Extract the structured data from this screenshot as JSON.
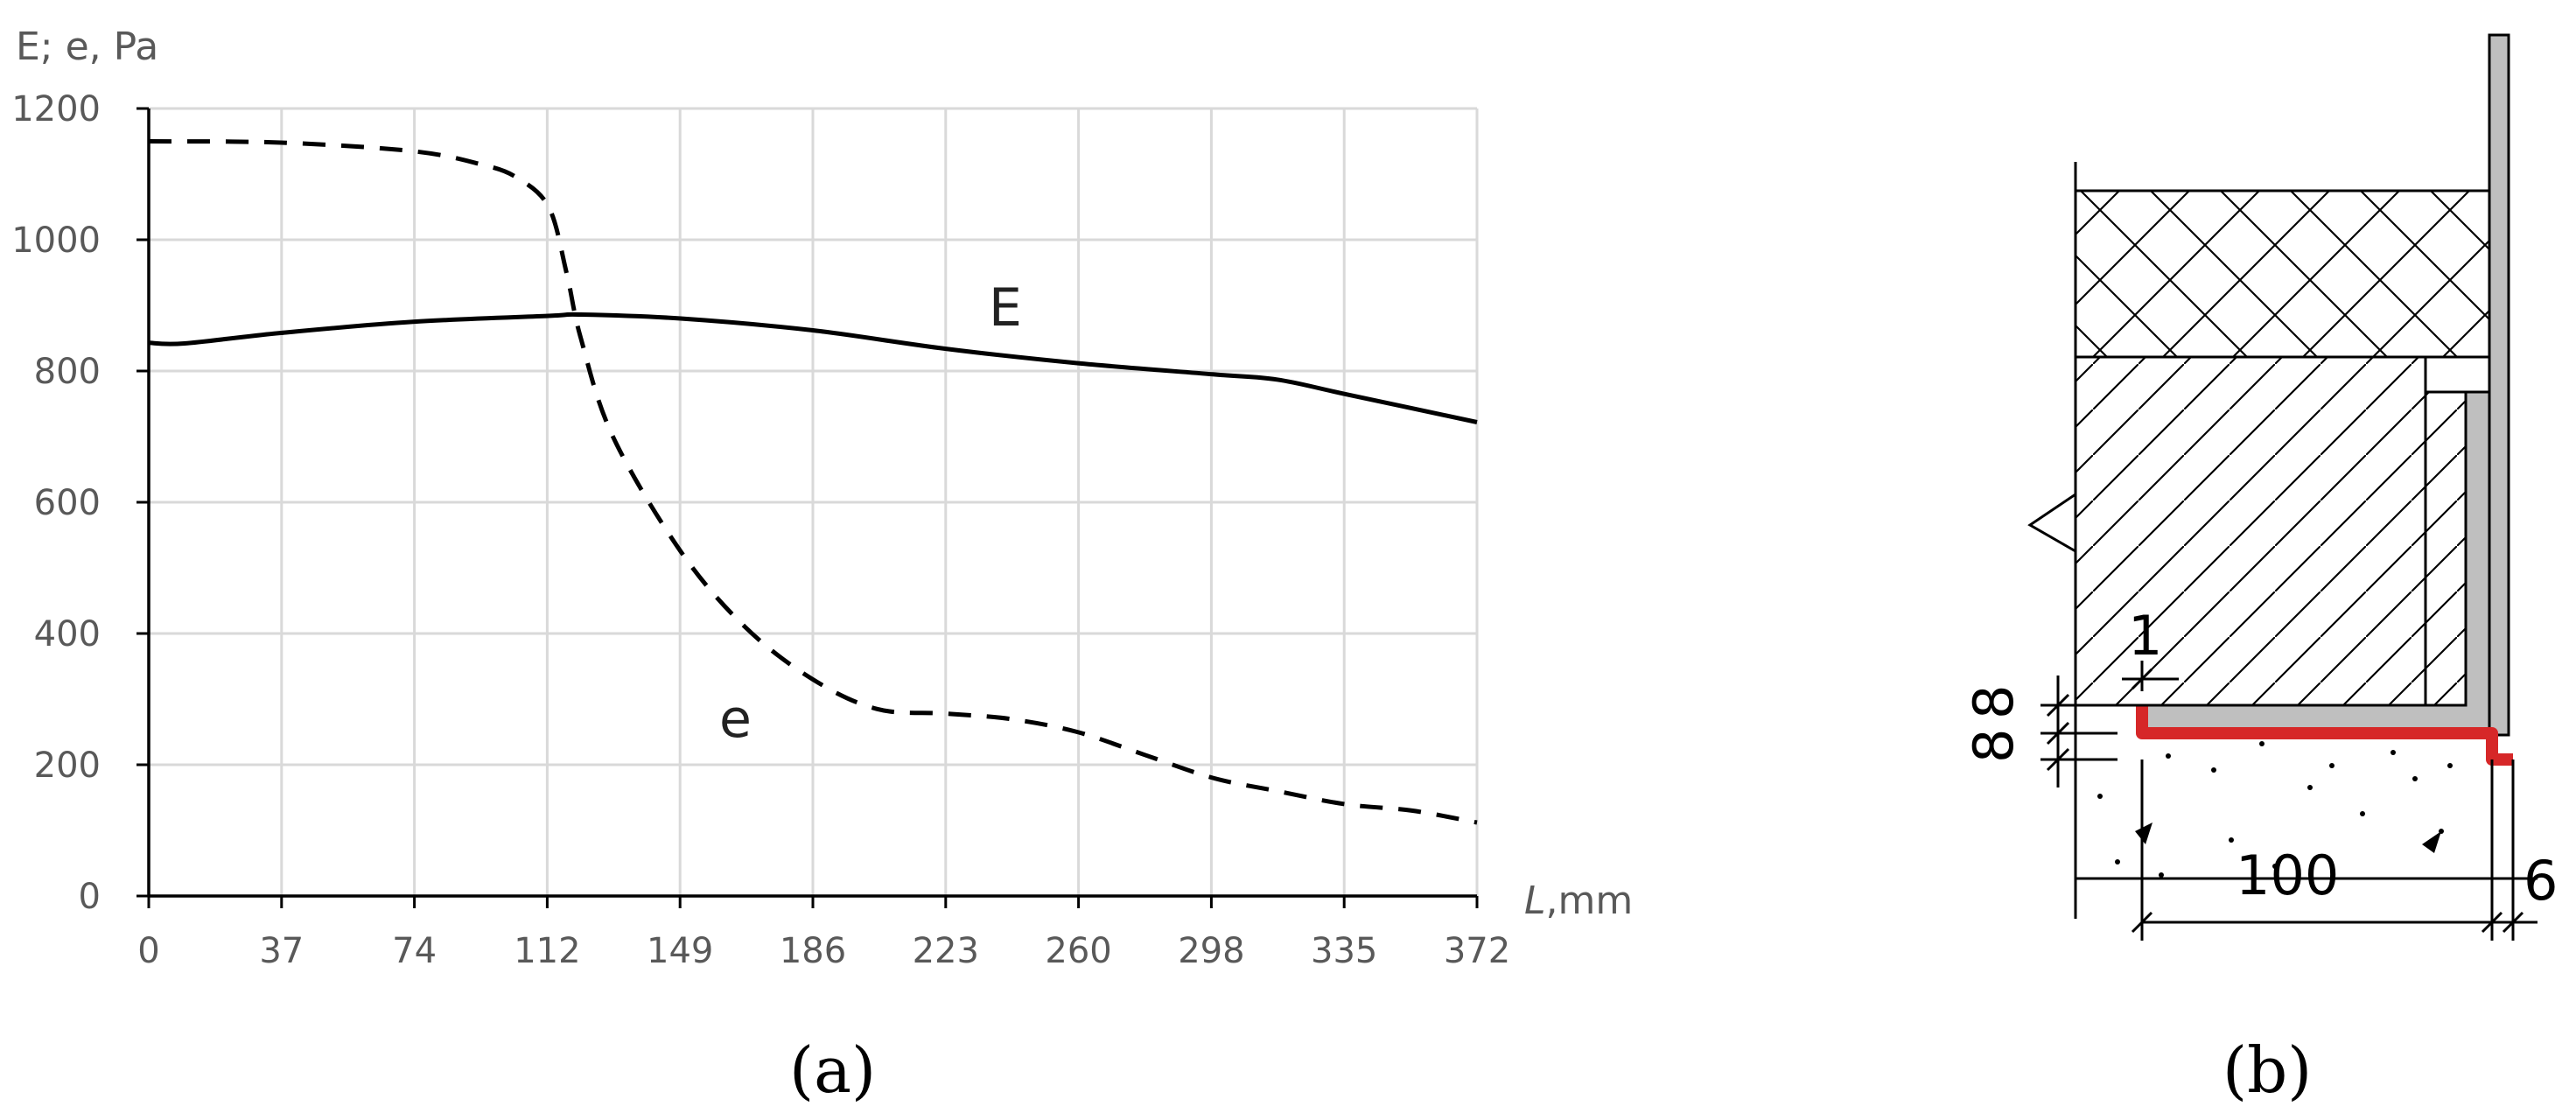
{
  "chart_data": {
    "type": "line",
    "ylabel": "E; e, Pa",
    "xlabel": "L,mm",
    "x_ticks": [
      "0",
      "37",
      "74",
      "112",
      "149",
      "186",
      "223",
      "260",
      "298",
      "335",
      "372"
    ],
    "y_ticks": [
      "0",
      "200",
      "400",
      "600",
      "800",
      "1000",
      "1200"
    ],
    "xlim": [
      0,
      372
    ],
    "ylim": [
      0,
      1200
    ],
    "grid": true,
    "series": [
      {
        "name": "E",
        "style": "solid",
        "color": "#000000",
        "x": [
          0,
          10,
          37,
          74,
          112,
          121,
          149,
          186,
          223,
          260,
          298,
          316,
          335,
          372
        ],
        "y": [
          843,
          842,
          858,
          875,
          884,
          886,
          880,
          862,
          834,
          812,
          795,
          787,
          765,
          722
        ]
      },
      {
        "name": "e",
        "style": "dashed",
        "color": "#000000",
        "x": [
          0,
          37,
          74,
          93,
          103,
          112,
          117,
          121,
          130,
          149,
          167,
          186,
          204,
          223,
          241,
          260,
          279,
          298,
          316,
          335,
          354,
          372
        ],
        "y": [
          1150,
          1148,
          1135,
          1115,
          1095,
          1050,
          950,
          850,
          700,
          525,
          410,
          330,
          285,
          278,
          270,
          250,
          215,
          180,
          160,
          140,
          130,
          112
        ]
      }
    ]
  },
  "captions": {
    "a": "(a)",
    "b": "(b)"
  },
  "drawing_b": {
    "dim_top": "1",
    "dim_left_upper": "8",
    "dim_left_lower": "8",
    "dim_bottom": "100",
    "dim_right": "6",
    "highlight_color": "#d62728",
    "steel_color": "#bfbfbf"
  }
}
